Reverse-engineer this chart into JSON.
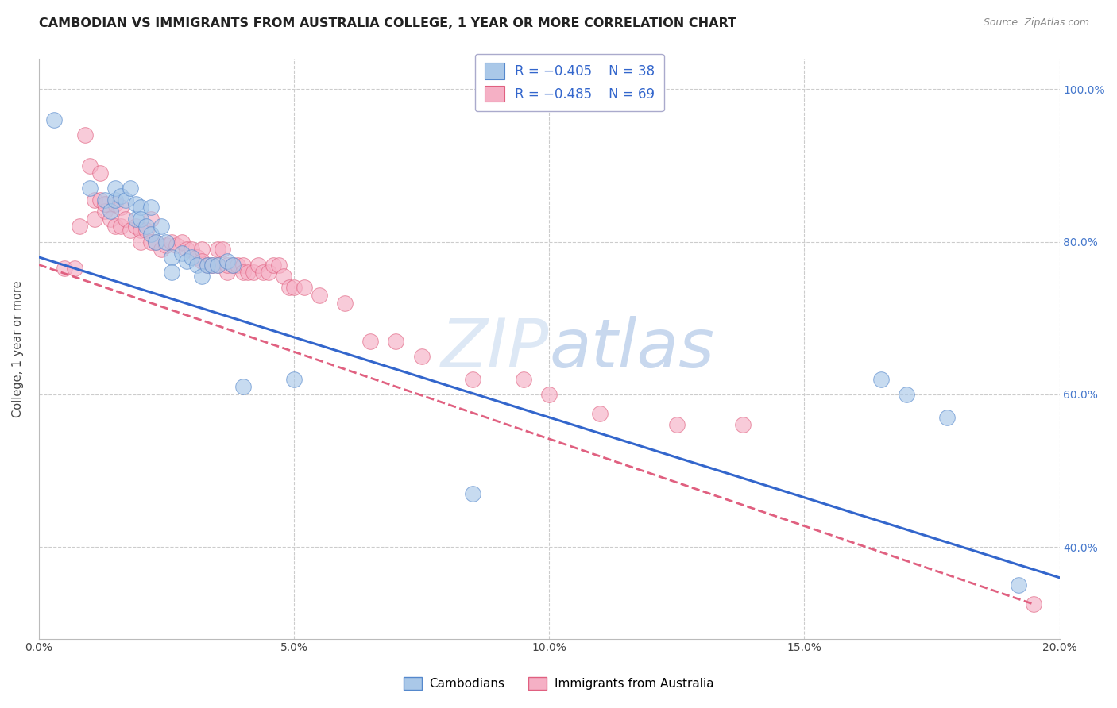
{
  "title": "CAMBODIAN VS IMMIGRANTS FROM AUSTRALIA COLLEGE, 1 YEAR OR MORE CORRELATION CHART",
  "source": "Source: ZipAtlas.com",
  "ylabel": "College, 1 year or more",
  "xlim": [
    0.0,
    0.2
  ],
  "ylim": [
    0.28,
    1.04
  ],
  "legend_blue_R": "R = −0.405",
  "legend_blue_N": "N = 38",
  "legend_pink_R": "R = −0.485",
  "legend_pink_N": "N = 69",
  "legend_label_blue": "Cambodians",
  "legend_label_pink": "Immigrants from Australia",
  "blue_color": "#aac8e8",
  "blue_edge": "#5588cc",
  "pink_color": "#f5b0c5",
  "pink_edge": "#e06080",
  "trendline_blue": "#3366cc",
  "trendline_pink": "#e06080",
  "grid_color": "#cccccc",
  "watermark_color": "#dde8f5",
  "blue_scatter_x": [
    0.003,
    0.01,
    0.013,
    0.014,
    0.015,
    0.015,
    0.016,
    0.017,
    0.018,
    0.019,
    0.019,
    0.02,
    0.02,
    0.021,
    0.022,
    0.022,
    0.023,
    0.024,
    0.025,
    0.026,
    0.026,
    0.028,
    0.029,
    0.03,
    0.031,
    0.032,
    0.033,
    0.034,
    0.035,
    0.037,
    0.038,
    0.04,
    0.05,
    0.085,
    0.165,
    0.17,
    0.178,
    0.192
  ],
  "blue_scatter_y": [
    0.96,
    0.87,
    0.855,
    0.84,
    0.855,
    0.87,
    0.86,
    0.855,
    0.87,
    0.85,
    0.83,
    0.845,
    0.83,
    0.82,
    0.845,
    0.81,
    0.8,
    0.82,
    0.8,
    0.78,
    0.76,
    0.785,
    0.775,
    0.78,
    0.77,
    0.755,
    0.77,
    0.77,
    0.77,
    0.775,
    0.77,
    0.61,
    0.62,
    0.47,
    0.62,
    0.6,
    0.57,
    0.35
  ],
  "pink_scatter_x": [
    0.005,
    0.007,
    0.008,
    0.009,
    0.01,
    0.011,
    0.011,
    0.012,
    0.012,
    0.013,
    0.013,
    0.014,
    0.015,
    0.015,
    0.016,
    0.016,
    0.017,
    0.018,
    0.019,
    0.02,
    0.02,
    0.021,
    0.022,
    0.022,
    0.023,
    0.024,
    0.025,
    0.026,
    0.027,
    0.028,
    0.029,
    0.03,
    0.031,
    0.032,
    0.032,
    0.033,
    0.034,
    0.035,
    0.035,
    0.036,
    0.037,
    0.037,
    0.038,
    0.039,
    0.04,
    0.04,
    0.041,
    0.042,
    0.043,
    0.044,
    0.045,
    0.046,
    0.047,
    0.048,
    0.049,
    0.05,
    0.052,
    0.055,
    0.06,
    0.065,
    0.07,
    0.075,
    0.085,
    0.095,
    0.1,
    0.11,
    0.125,
    0.138,
    0.195
  ],
  "pink_scatter_y": [
    0.765,
    0.765,
    0.82,
    0.94,
    0.9,
    0.855,
    0.83,
    0.89,
    0.855,
    0.84,
    0.85,
    0.83,
    0.82,
    0.85,
    0.82,
    0.845,
    0.83,
    0.815,
    0.82,
    0.815,
    0.8,
    0.815,
    0.8,
    0.83,
    0.8,
    0.79,
    0.795,
    0.8,
    0.795,
    0.8,
    0.79,
    0.79,
    0.78,
    0.79,
    0.775,
    0.77,
    0.77,
    0.77,
    0.79,
    0.79,
    0.76,
    0.77,
    0.77,
    0.77,
    0.77,
    0.76,
    0.76,
    0.76,
    0.77,
    0.76,
    0.76,
    0.77,
    0.77,
    0.755,
    0.74,
    0.74,
    0.74,
    0.73,
    0.72,
    0.67,
    0.67,
    0.65,
    0.62,
    0.62,
    0.6,
    0.575,
    0.56,
    0.56,
    0.325
  ],
  "blue_trend_x": [
    0.0,
    0.2
  ],
  "blue_trend_y": [
    0.78,
    0.36
  ],
  "pink_trend_x": [
    0.0,
    0.195
  ],
  "pink_trend_y": [
    0.77,
    0.325
  ],
  "title_fontsize": 11.5,
  "axis_fontsize": 10.5,
  "tick_fontsize": 10,
  "marker_size": 200,
  "xtick_vals": [
    0.0,
    0.05,
    0.1,
    0.15,
    0.2
  ],
  "xtick_labels": [
    "0.0%",
    "5.0%",
    "10.0%",
    "15.0%",
    "20.0%"
  ],
  "ytick_right_vals": [
    0.4,
    0.6,
    0.8,
    1.0
  ],
  "ytick_right_labels": [
    "40.0%",
    "60.0%",
    "80.0%",
    "100.0%"
  ],
  "hgrid_vals": [
    0.4,
    0.6,
    0.8,
    1.0
  ],
  "vgrid_vals": [
    0.05,
    0.1,
    0.15,
    0.2
  ]
}
